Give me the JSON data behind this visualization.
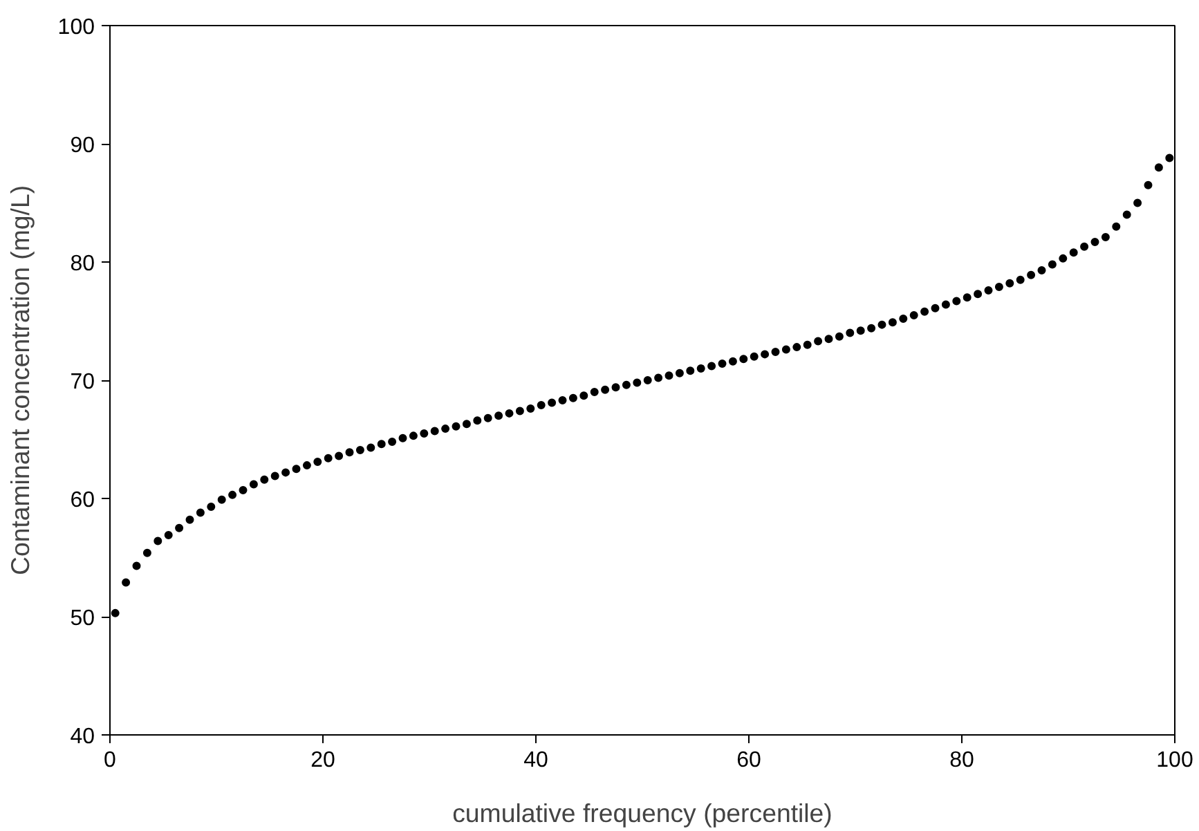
{
  "chart_data": {
    "type": "scatter",
    "xlabel": "cumulative frequency (percentile)",
    "ylabel": "Contaminant concentration (mg/L)",
    "x": [
      0.5,
      1.5,
      2.5,
      3.5,
      4.5,
      5.5,
      6.5,
      7.5,
      8.5,
      9.5,
      10.5,
      11.5,
      12.5,
      13.5,
      14.5,
      15.5,
      16.5,
      17.5,
      18.5,
      19.5,
      20.5,
      21.5,
      22.5,
      23.5,
      24.5,
      25.5,
      26.5,
      27.5,
      28.5,
      29.5,
      30.5,
      31.5,
      32.5,
      33.5,
      34.5,
      35.5,
      36.5,
      37.5,
      38.5,
      39.5,
      40.5,
      41.5,
      42.5,
      43.5,
      44.5,
      45.5,
      46.5,
      47.5,
      48.5,
      49.5,
      50.5,
      51.5,
      52.5,
      53.5,
      54.5,
      55.5,
      56.5,
      57.5,
      58.5,
      59.5,
      60.5,
      61.5,
      62.5,
      63.5,
      64.5,
      65.5,
      66.5,
      67.5,
      68.5,
      69.5,
      70.5,
      71.5,
      72.5,
      73.5,
      74.5,
      75.5,
      76.5,
      77.5,
      78.5,
      79.5,
      80.5,
      81.5,
      82.5,
      83.5,
      84.5,
      85.5,
      86.5,
      87.5,
      88.5,
      89.5,
      90.5,
      91.5,
      92.5,
      93.5,
      94.5,
      95.5,
      96.5,
      97.5,
      98.5,
      99.5
    ],
    "values": [
      50.3,
      52.9,
      54.3,
      55.4,
      56.4,
      56.9,
      57.5,
      58.2,
      58.8,
      59.3,
      59.9,
      60.3,
      60.7,
      61.2,
      61.6,
      61.9,
      62.2,
      62.5,
      62.8,
      63.1,
      63.4,
      63.6,
      63.9,
      64.1,
      64.3,
      64.6,
      64.8,
      65.1,
      65.3,
      65.5,
      65.7,
      65.9,
      66.1,
      66.3,
      66.6,
      66.8,
      67.0,
      67.2,
      67.4,
      67.6,
      67.9,
      68.1,
      68.3,
      68.5,
      68.7,
      69.0,
      69.2,
      69.4,
      69.6,
      69.8,
      70.0,
      70.2,
      70.4,
      70.6,
      70.8,
      71.0,
      71.2,
      71.4,
      71.6,
      71.8,
      72.0,
      72.2,
      72.4,
      72.6,
      72.8,
      73.0,
      73.3,
      73.5,
      73.7,
      74.0,
      74.2,
      74.4,
      74.7,
      74.9,
      75.2,
      75.5,
      75.8,
      76.1,
      76.4,
      76.7,
      77.0,
      77.3,
      77.6,
      77.9,
      78.2,
      78.5,
      78.9,
      79.3,
      79.8,
      80.3,
      80.8,
      81.3,
      81.7,
      82.1,
      83.0,
      84.0,
      85.0,
      86.5,
      88.0,
      88.8
    ],
    "color": "#000000",
    "marker": "circle",
    "xlim": [
      0,
      100
    ],
    "xticks": [
      0,
      20,
      40,
      60,
      80,
      100
    ],
    "ylim": [
      40,
      100
    ],
    "yticks": [
      40,
      50,
      60,
      70,
      80,
      90,
      100
    ],
    "grid": false
  }
}
